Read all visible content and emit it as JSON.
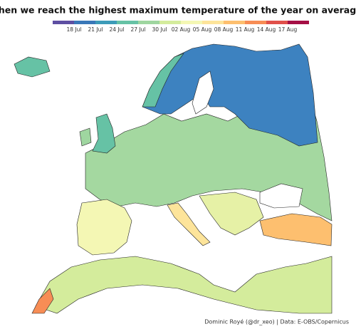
{
  "title": "When we reach the highest maximum temperature of the year on average?",
  "legend": {
    "colors": [
      "#5e4fa2",
      "#3a78b8",
      "#3d9bb8",
      "#66c2a5",
      "#9fd6a0",
      "#d4ec9c",
      "#f4f7b4",
      "#fde49a",
      "#fdbf6f",
      "#f78d55",
      "#e0504a",
      "#a50f45"
    ],
    "labels": [
      "18 Jul",
      "21 Jul",
      "24 Jul",
      "27 Jul",
      "30 Jul",
      "02 Aug",
      "05 Aug",
      "08 Aug",
      "11 Aug",
      "14 Aug",
      "17 Aug"
    ]
  },
  "credit": "Dominic Royé (@dr_xeo) | Data: E-OBS/Copernicus"
}
